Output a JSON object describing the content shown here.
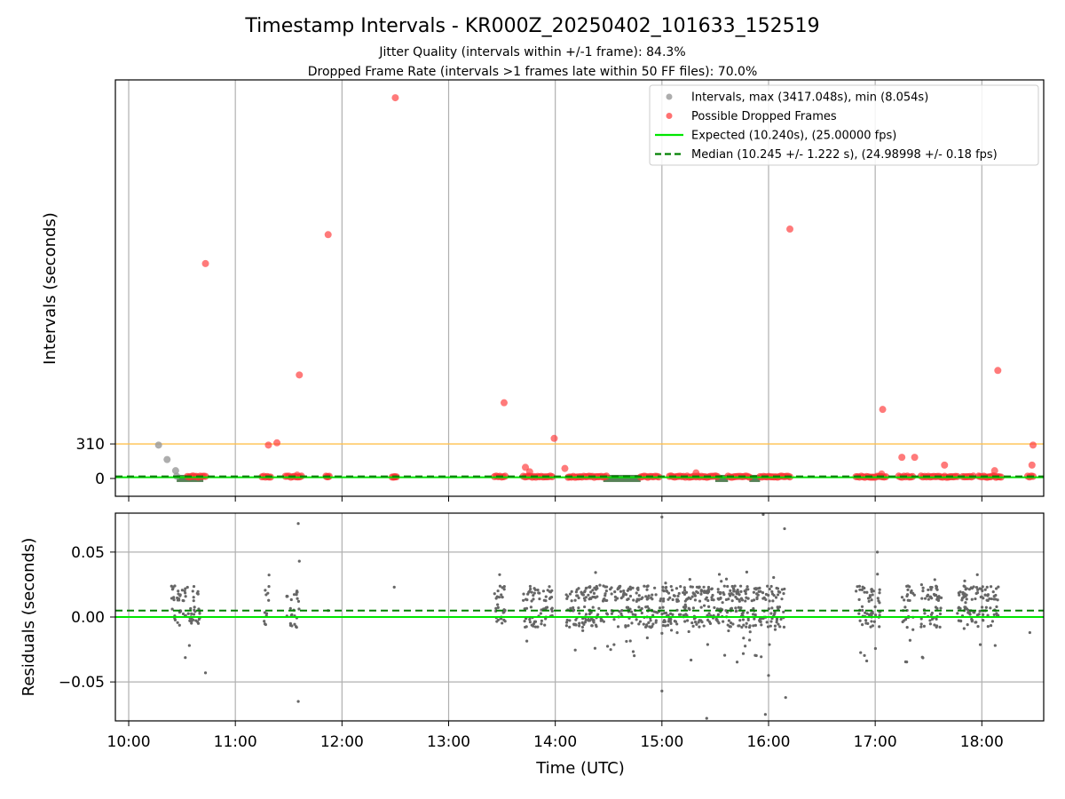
{
  "chart_data": {
    "type": "scatter",
    "title": "Timestamp Intervals - KR000Z_20250402_101633_152519",
    "subtitle_lines": [
      "Jitter Quality (intervals within +/-1 frame): 84.3%",
      "Dropped Frame Rate (intervals >1 frames late within 50 FF files): 70.0%"
    ],
    "xlabel": "Time (UTC)",
    "xticks": [
      "10:00",
      "11:00",
      "12:00",
      "13:00",
      "14:00",
      "15:00",
      "16:00",
      "17:00",
      "18:00"
    ],
    "xlim_hours": [
      9.875,
      18.58
    ],
    "top_panel": {
      "ylabel": "Intervals (seconds)",
      "yticks": [
        "0",
        "310"
      ],
      "ylim": [
        -160,
        3580
      ],
      "threshold_line": {
        "value": 310,
        "color": "#ffc04d"
      },
      "legend": {
        "position": "top-right",
        "entries": [
          {
            "label": "Intervals, max (3417.048s), min (8.054s)",
            "color": "#999999",
            "kind": "point"
          },
          {
            "label": "Possible Dropped Frames",
            "color": "#ff4d4d",
            "kind": "point"
          },
          {
            "label": "Expected (10.240s), (25.00000 fps)",
            "color": "#00e600",
            "kind": "line"
          },
          {
            "label": "Median (10.245 +/- 1.222 s), (24.98998 +/- 0.18 fps)",
            "color": "#008000",
            "kind": "dashed"
          }
        ]
      },
      "expected_value": 10.24,
      "median_value": 10.245,
      "intervals_points": [
        {
          "t": 10.28,
          "v": 300
        },
        {
          "t": 10.36,
          "v": 170
        },
        {
          "t": 10.44,
          "v": 70
        },
        {
          "t": 10.45,
          "v": 20
        }
      ],
      "dropped_points": [
        {
          "t": 10.72,
          "v": 1930
        },
        {
          "t": 11.31,
          "v": 300
        },
        {
          "t": 11.39,
          "v": 320
        },
        {
          "t": 11.6,
          "v": 930
        },
        {
          "t": 11.87,
          "v": 2190
        },
        {
          "t": 12.5,
          "v": 3420
        },
        {
          "t": 13.52,
          "v": 680
        },
        {
          "t": 13.99,
          "v": 360
        },
        {
          "t": 13.72,
          "v": 100
        },
        {
          "t": 14.09,
          "v": 90
        },
        {
          "t": 15.32,
          "v": 50
        },
        {
          "t": 16.2,
          "v": 2240
        },
        {
          "t": 17.07,
          "v": 620
        },
        {
          "t": 17.25,
          "v": 190
        },
        {
          "t": 17.37,
          "v": 190
        },
        {
          "t": 17.65,
          "v": 120
        },
        {
          "t": 18.15,
          "v": 970
        },
        {
          "t": 18.12,
          "v": 70
        },
        {
          "t": 18.48,
          "v": 300
        },
        {
          "t": 18.47,
          "v": 120
        },
        {
          "t": 17.06,
          "v": 40
        },
        {
          "t": 13.76,
          "v": 60
        },
        {
          "t": 11.58,
          "v": 30
        },
        {
          "t": 12.49,
          "v": 15
        }
      ],
      "dropped_clusters": [
        [
          10.55,
          10.72
        ],
        [
          11.25,
          11.33
        ],
        [
          11.47,
          11.62
        ],
        [
          11.85,
          11.88
        ],
        [
          12.47,
          12.51
        ],
        [
          13.43,
          13.53
        ],
        [
          13.7,
          13.97
        ],
        [
          14.12,
          14.48
        ],
        [
          14.8,
          14.97
        ],
        [
          15.07,
          15.52
        ],
        [
          15.62,
          15.82
        ],
        [
          15.92,
          16.2
        ],
        [
          16.82,
          17.1
        ],
        [
          17.22,
          17.35
        ],
        [
          17.43,
          17.77
        ],
        [
          17.82,
          17.92
        ],
        [
          17.97,
          18.18
        ],
        [
          18.43,
          18.48
        ]
      ],
      "dense_bar_ranges": [
        [
          10.45,
          10.7
        ],
        [
          14.45,
          14.8
        ],
        [
          15.5,
          15.62
        ],
        [
          15.82,
          15.92
        ]
      ]
    },
    "bottom_panel": {
      "ylabel": "Residuals (seconds)",
      "yticks": [
        "0.05",
        "0.00",
        "−0.05"
      ],
      "ytick_values": [
        0.05,
        0.0,
        -0.05
      ],
      "ylim": [
        -0.08,
        0.08
      ],
      "expected_residual": 0.0,
      "median_residual": 0.005,
      "residual_clusters": [
        {
          "from": 10.4,
          "to": 10.67,
          "n": 70
        },
        {
          "from": 11.27,
          "to": 11.32,
          "n": 12
        },
        {
          "from": 11.48,
          "to": 11.6,
          "n": 25
        },
        {
          "from": 13.43,
          "to": 13.53,
          "n": 30
        },
        {
          "from": 13.7,
          "to": 13.99,
          "n": 70
        },
        {
          "from": 14.1,
          "to": 16.15,
          "n": 600
        },
        {
          "from": 16.82,
          "to": 17.05,
          "n": 60
        },
        {
          "from": 17.25,
          "to": 17.37,
          "n": 30
        },
        {
          "from": 17.43,
          "to": 17.62,
          "n": 55
        },
        {
          "from": 17.77,
          "to": 18.17,
          "n": 110
        }
      ],
      "residual_outliers": [
        {
          "t": 10.72,
          "v": -0.043
        },
        {
          "t": 11.59,
          "v": 0.072
        },
        {
          "t": 11.59,
          "v": -0.065
        },
        {
          "t": 11.6,
          "v": 0.043
        },
        {
          "t": 11.87,
          "v": 0.005
        },
        {
          "t": 12.49,
          "v": 0.023
        },
        {
          "t": 15.0,
          "v": 0.077
        },
        {
          "t": 15.0,
          "v": -0.057
        },
        {
          "t": 15.42,
          "v": -0.078
        },
        {
          "t": 15.97,
          "v": -0.075
        },
        {
          "t": 16.0,
          "v": -0.045
        },
        {
          "t": 16.16,
          "v": -0.062
        },
        {
          "t": 16.15,
          "v": 0.068
        },
        {
          "t": 15.95,
          "v": 0.079
        },
        {
          "t": 17.02,
          "v": 0.05
        },
        {
          "t": 18.45,
          "v": -0.012
        }
      ]
    },
    "colors": {
      "interval": "#999999",
      "dropped": "#ff3333",
      "expected": "#00e600",
      "median": "#008000",
      "threshold": "#ffc04d",
      "residual": "#666666",
      "grid": "#b0b0b0"
    }
  }
}
